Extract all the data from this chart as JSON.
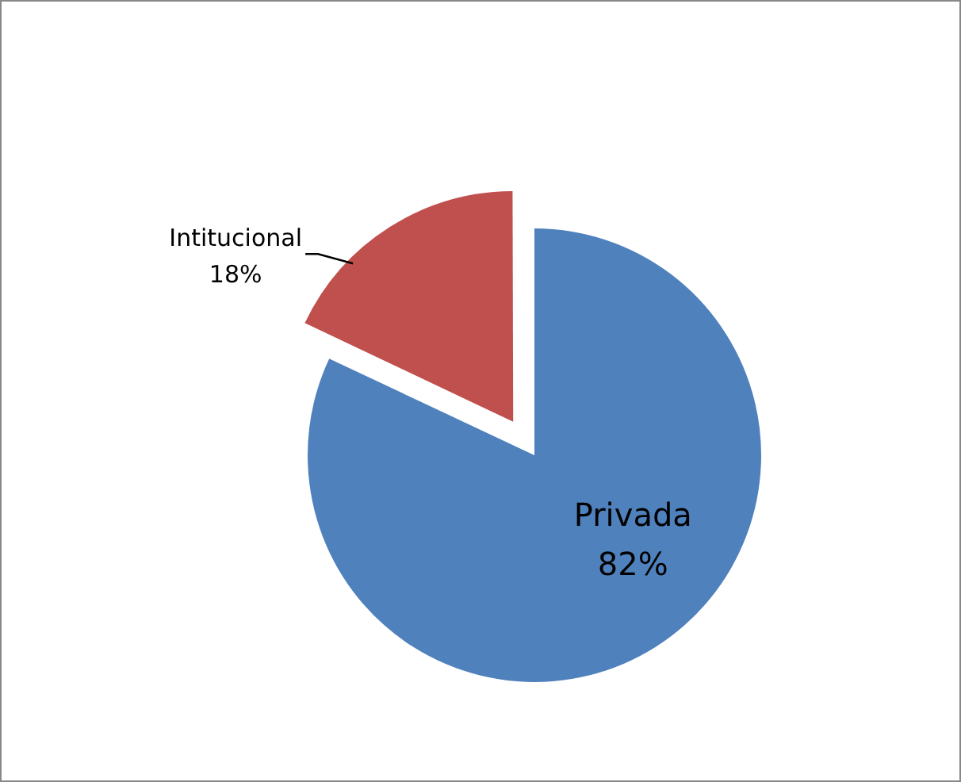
{
  "chart_data": {
    "type": "pie",
    "categories": [
      "Privada",
      "Intitucional"
    ],
    "values": [
      82,
      18
    ],
    "colors": [
      "#4f81bd",
      "#c0504d"
    ],
    "value_labels": [
      "82%",
      "18%"
    ],
    "legend": false
  }
}
